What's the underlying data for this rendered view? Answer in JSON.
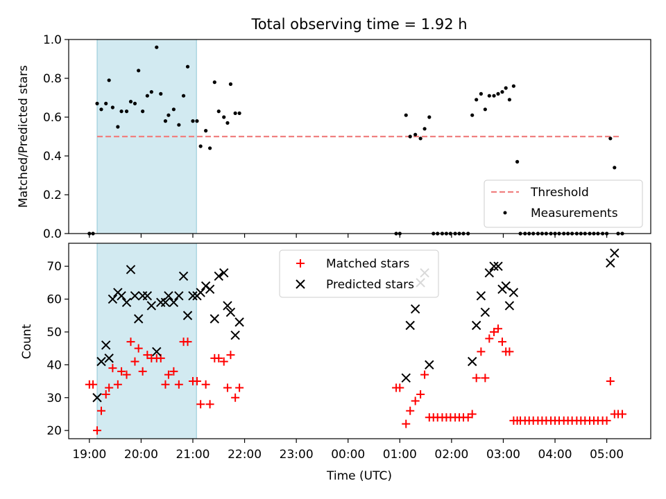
{
  "figure": {
    "title": "Total observing time = 1.92 h",
    "xlabel": "Time (UTC)"
  },
  "chart_data": [
    {
      "type": "scatter",
      "ylabel": "Matched/Predicted stars",
      "ylim": [
        0,
        1.0
      ],
      "xlim": [
        18.6,
        29.85
      ],
      "yticks": [
        "0.0",
        "0.2",
        "0.4",
        "0.6",
        "0.8",
        "1.0"
      ],
      "shaded_interval": {
        "start": 19.15,
        "end": 21.07,
        "color": "#add8e6"
      },
      "threshold": {
        "name": "Threshold",
        "value": 0.5,
        "x_range": [
          19.15,
          29.25
        ],
        "color": "#f08080"
      },
      "legend_position": "lower-right",
      "series": [
        {
          "name": "Measurements",
          "color": "#000000",
          "points": [
            [
              19.0,
              0.0
            ],
            [
              19.07,
              0.0
            ],
            [
              19.15,
              0.67
            ],
            [
              19.23,
              0.64
            ],
            [
              19.32,
              0.67
            ],
            [
              19.38,
              0.79
            ],
            [
              19.45,
              0.65
            ],
            [
              19.55,
              0.55
            ],
            [
              19.62,
              0.63
            ],
            [
              19.72,
              0.63
            ],
            [
              19.8,
              0.68
            ],
            [
              19.88,
              0.67
            ],
            [
              19.95,
              0.84
            ],
            [
              20.03,
              0.63
            ],
            [
              20.12,
              0.71
            ],
            [
              20.2,
              0.73
            ],
            [
              20.3,
              0.96
            ],
            [
              20.38,
              0.72
            ],
            [
              20.47,
              0.58
            ],
            [
              20.53,
              0.61
            ],
            [
              20.63,
              0.64
            ],
            [
              20.73,
              0.56
            ],
            [
              20.82,
              0.71
            ],
            [
              20.9,
              0.86
            ],
            [
              21.0,
              0.58
            ],
            [
              21.08,
              0.58
            ],
            [
              21.15,
              0.45
            ],
            [
              21.25,
              0.53
            ],
            [
              21.33,
              0.44
            ],
            [
              21.42,
              0.78
            ],
            [
              21.5,
              0.63
            ],
            [
              21.6,
              0.6
            ],
            [
              21.67,
              0.57
            ],
            [
              21.73,
              0.77
            ],
            [
              21.82,
              0.62
            ],
            [
              21.9,
              0.62
            ],
            [
              24.93,
              0.0
            ],
            [
              25.0,
              0.0
            ],
            [
              25.12,
              0.61
            ],
            [
              25.2,
              0.5
            ],
            [
              25.3,
              0.51
            ],
            [
              25.4,
              0.49
            ],
            [
              25.48,
              0.54
            ],
            [
              25.57,
              0.6
            ],
            [
              25.65,
              0.0
            ],
            [
              25.73,
              0.0
            ],
            [
              25.82,
              0.0
            ],
            [
              25.9,
              0.0
            ],
            [
              25.98,
              0.0
            ],
            [
              26.07,
              0.0
            ],
            [
              26.15,
              0.0
            ],
            [
              26.23,
              0.0
            ],
            [
              26.32,
              0.0
            ],
            [
              26.4,
              0.61
            ],
            [
              26.48,
              0.69
            ],
            [
              26.57,
              0.72
            ],
            [
              26.65,
              0.64
            ],
            [
              26.73,
              0.71
            ],
            [
              26.82,
              0.71
            ],
            [
              26.9,
              0.72
            ],
            [
              26.98,
              0.73
            ],
            [
              27.05,
              0.75
            ],
            [
              27.12,
              0.69
            ],
            [
              27.2,
              0.76
            ],
            [
              27.27,
              0.37
            ],
            [
              27.33,
              0.0
            ],
            [
              27.42,
              0.0
            ],
            [
              27.5,
              0.0
            ],
            [
              27.58,
              0.0
            ],
            [
              27.67,
              0.0
            ],
            [
              27.75,
              0.0
            ],
            [
              27.83,
              0.0
            ],
            [
              27.92,
              0.0
            ],
            [
              28.0,
              0.0
            ],
            [
              28.08,
              0.0
            ],
            [
              28.17,
              0.0
            ],
            [
              28.25,
              0.0
            ],
            [
              28.33,
              0.0
            ],
            [
              28.42,
              0.0
            ],
            [
              28.5,
              0.0
            ],
            [
              28.58,
              0.0
            ],
            [
              28.67,
              0.0
            ],
            [
              28.75,
              0.0
            ],
            [
              28.83,
              0.0
            ],
            [
              28.92,
              0.0
            ],
            [
              29.0,
              0.0
            ],
            [
              29.07,
              0.49
            ],
            [
              29.15,
              0.34
            ],
            [
              29.22,
              0.0
            ],
            [
              29.3,
              0.0
            ]
          ]
        }
      ]
    },
    {
      "type": "scatter",
      "ylabel": "Count",
      "ylim": [
        17.5,
        77
      ],
      "xlim": [
        18.6,
        29.85
      ],
      "yticks": [
        "20",
        "30",
        "40",
        "50",
        "60",
        "70"
      ],
      "xticks": [
        "19:00",
        "20:00",
        "21:00",
        "22:00",
        "23:00",
        "00:00",
        "01:00",
        "02:00",
        "03:00",
        "04:00",
        "05:00"
      ],
      "shaded_interval": {
        "start": 19.15,
        "end": 21.07,
        "color": "#add8e6"
      },
      "legend_position": "upper-center",
      "series": [
        {
          "name": "Matched stars",
          "marker": "plus",
          "color": "#ff0000",
          "points": [
            [
              19.0,
              34
            ],
            [
              19.07,
              34
            ],
            [
              19.15,
              20
            ],
            [
              19.23,
              26
            ],
            [
              19.32,
              31
            ],
            [
              19.38,
              33
            ],
            [
              19.45,
              39
            ],
            [
              19.55,
              34
            ],
            [
              19.62,
              38
            ],
            [
              19.72,
              37
            ],
            [
              19.8,
              47
            ],
            [
              19.88,
              41
            ],
            [
              19.95,
              45
            ],
            [
              20.03,
              38
            ],
            [
              20.12,
              43
            ],
            [
              20.2,
              42
            ],
            [
              20.3,
              42
            ],
            [
              20.38,
              42
            ],
            [
              20.47,
              34
            ],
            [
              20.53,
              37
            ],
            [
              20.63,
              38
            ],
            [
              20.73,
              34
            ],
            [
              20.82,
              47
            ],
            [
              20.9,
              47
            ],
            [
              21.0,
              35
            ],
            [
              21.08,
              35
            ],
            [
              21.15,
              28
            ],
            [
              21.25,
              34
            ],
            [
              21.33,
              28
            ],
            [
              21.42,
              42
            ],
            [
              21.5,
              42
            ],
            [
              21.6,
              41
            ],
            [
              21.67,
              33
            ],
            [
              21.73,
              43
            ],
            [
              21.82,
              30
            ],
            [
              21.9,
              33
            ],
            [
              24.93,
              33
            ],
            [
              25.0,
              33
            ],
            [
              25.12,
              22
            ],
            [
              25.2,
              26
            ],
            [
              25.3,
              29
            ],
            [
              25.4,
              31
            ],
            [
              25.48,
              37
            ],
            [
              25.57,
              24
            ],
            [
              25.65,
              24
            ],
            [
              25.73,
              24
            ],
            [
              25.82,
              24
            ],
            [
              25.9,
              24
            ],
            [
              25.98,
              24
            ],
            [
              26.07,
              24
            ],
            [
              26.15,
              24
            ],
            [
              26.23,
              24
            ],
            [
              26.32,
              24
            ],
            [
              26.4,
              25
            ],
            [
              26.48,
              36
            ],
            [
              26.57,
              44
            ],
            [
              26.65,
              36
            ],
            [
              26.73,
              48
            ],
            [
              26.82,
              50
            ],
            [
              26.9,
              51
            ],
            [
              26.98,
              47
            ],
            [
              27.05,
              44
            ],
            [
              27.12,
              44
            ],
            [
              27.2,
              23
            ],
            [
              27.27,
              23
            ],
            [
              27.33,
              23
            ],
            [
              27.42,
              23
            ],
            [
              27.5,
              23
            ],
            [
              27.58,
              23
            ],
            [
              27.67,
              23
            ],
            [
              27.75,
              23
            ],
            [
              27.83,
              23
            ],
            [
              27.92,
              23
            ],
            [
              28.0,
              23
            ],
            [
              28.08,
              23
            ],
            [
              28.17,
              23
            ],
            [
              28.25,
              23
            ],
            [
              28.33,
              23
            ],
            [
              28.42,
              23
            ],
            [
              28.5,
              23
            ],
            [
              28.58,
              23
            ],
            [
              28.67,
              23
            ],
            [
              28.75,
              23
            ],
            [
              28.83,
              23
            ],
            [
              28.92,
              23
            ],
            [
              29.0,
              23
            ],
            [
              29.07,
              35
            ],
            [
              29.15,
              25
            ],
            [
              29.22,
              25
            ],
            [
              29.3,
              25
            ]
          ]
        },
        {
          "name": "Predicted stars",
          "marker": "x",
          "color": "#000000",
          "points": [
            [
              19.15,
              30
            ],
            [
              19.23,
              41
            ],
            [
              19.32,
              46
            ],
            [
              19.38,
              42
            ],
            [
              19.45,
              60
            ],
            [
              19.55,
              62
            ],
            [
              19.62,
              61
            ],
            [
              19.72,
              59
            ],
            [
              19.8,
              69
            ],
            [
              19.88,
              61
            ],
            [
              19.95,
              54
            ],
            [
              20.03,
              61
            ],
            [
              20.12,
              61
            ],
            [
              20.2,
              58
            ],
            [
              20.3,
              44
            ],
            [
              20.38,
              59
            ],
            [
              20.47,
              59
            ],
            [
              20.53,
              61
            ],
            [
              20.63,
              59
            ],
            [
              20.73,
              61
            ],
            [
              20.82,
              67
            ],
            [
              20.9,
              55
            ],
            [
              21.0,
              61
            ],
            [
              21.08,
              61
            ],
            [
              21.15,
              62
            ],
            [
              21.25,
              64
            ],
            [
              21.33,
              63
            ],
            [
              21.42,
              54
            ],
            [
              21.5,
              67
            ],
            [
              21.6,
              68
            ],
            [
              21.67,
              58
            ],
            [
              21.73,
              56
            ],
            [
              21.82,
              49
            ],
            [
              21.9,
              53
            ],
            [
              25.12,
              36
            ],
            [
              25.2,
              52
            ],
            [
              25.3,
              57
            ],
            [
              25.4,
              65
            ],
            [
              25.48,
              68
            ],
            [
              25.57,
              40
            ],
            [
              26.4,
              41
            ],
            [
              26.48,
              52
            ],
            [
              26.57,
              61
            ],
            [
              26.65,
              56
            ],
            [
              26.73,
              68
            ],
            [
              26.82,
              70
            ],
            [
              26.9,
              70
            ],
            [
              26.98,
              63
            ],
            [
              27.05,
              64
            ],
            [
              27.12,
              58
            ],
            [
              27.2,
              62
            ],
            [
              29.07,
              71
            ],
            [
              29.15,
              74
            ]
          ]
        }
      ]
    }
  ]
}
